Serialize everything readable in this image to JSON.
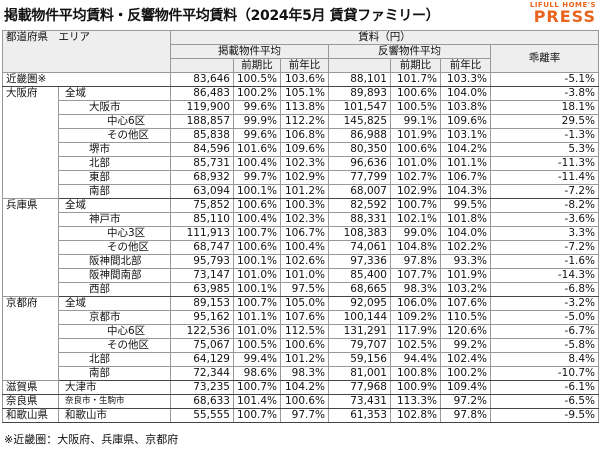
{
  "header": {
    "title": "掲載物件平均賃料・反響物件平均賃料（2024年5月 賃貸ファミリー）",
    "logo_top": "LIFULL HOME'S",
    "logo_bottom": "PRESS"
  },
  "table": {
    "columns": {
      "region": "都道府県　エリア",
      "rent": "賃料（円）",
      "listed": "掲載物件平均",
      "responded": "反響物件平均",
      "gap": "乖離率"
    },
    "sub_headers": [
      "前期比",
      "前年比",
      "前期比",
      "前年比"
    ],
    "groups": [
      {
        "prefecture": "近畿圏※",
        "rows": [
          {
            "values": [
              "83,646",
              "100.5%",
              "103.6%",
              "88,101",
              "101.7%",
              "103.3%",
              "-5.1%"
            ]
          }
        ]
      },
      {
        "prefecture": "大阪府",
        "rows": [
          {
            "area": "全域",
            "values": [
              "86,483",
              "100.2%",
              "105.1%",
              "89,893",
              "100.6%",
              "104.0%",
              "-3.8%"
            ]
          },
          {
            "area": "大阪市",
            "values": [
              "119,900",
              "99.6%",
              "113.8%",
              "101,547",
              "100.5%",
              "103.8%",
              "18.1%"
            ]
          },
          {
            "area": "中心6区",
            "values": [
              "188,857",
              "99.9%",
              "112.2%",
              "145,825",
              "99.1%",
              "109.6%",
              "29.5%"
            ]
          },
          {
            "area": "その他区",
            "values": [
              "85,838",
              "99.6%",
              "106.8%",
              "86,988",
              "101.9%",
              "103.1%",
              "-1.3%"
            ]
          },
          {
            "area": "堺市",
            "values": [
              "84,596",
              "101.6%",
              "109.6%",
              "80,350",
              "100.6%",
              "104.2%",
              "5.3%"
            ]
          },
          {
            "area": "北部",
            "values": [
              "85,731",
              "100.4%",
              "102.3%",
              "96,636",
              "101.0%",
              "101.1%",
              "-11.3%"
            ]
          },
          {
            "area": "東部",
            "values": [
              "68,932",
              "99.7%",
              "102.9%",
              "77,799",
              "102.7%",
              "106.7%",
              "-11.4%"
            ]
          },
          {
            "area": "南部",
            "values": [
              "63,094",
              "100.1%",
              "101.2%",
              "68,007",
              "102.9%",
              "104.3%",
              "-7.2%"
            ]
          }
        ]
      },
      {
        "prefecture": "兵庫県",
        "rows": [
          {
            "area": "全域",
            "values": [
              "75,852",
              "100.6%",
              "100.3%",
              "82,592",
              "100.7%",
              "99.5%",
              "-8.2%"
            ]
          },
          {
            "area": "神戸市",
            "values": [
              "85,110",
              "100.4%",
              "102.3%",
              "88,331",
              "102.1%",
              "101.8%",
              "-3.6%"
            ]
          },
          {
            "area": "中心3区",
            "values": [
              "111,913",
              "100.7%",
              "106.7%",
              "108,383",
              "99.0%",
              "104.0%",
              "3.3%"
            ]
          },
          {
            "area": "その他区",
            "values": [
              "68,747",
              "100.6%",
              "100.4%",
              "74,061",
              "104.8%",
              "102.2%",
              "-7.2%"
            ]
          },
          {
            "area": "阪神間北部",
            "values": [
              "95,793",
              "100.1%",
              "102.6%",
              "97,336",
              "97.8%",
              "93.3%",
              "-1.6%"
            ]
          },
          {
            "area": "阪神間南部",
            "values": [
              "73,147",
              "101.0%",
              "101.0%",
              "85,400",
              "107.7%",
              "101.9%",
              "-14.3%"
            ]
          },
          {
            "area": "西部",
            "values": [
              "63,985",
              "100.1%",
              "97.5%",
              "68,665",
              "98.3%",
              "103.2%",
              "-6.8%"
            ]
          }
        ]
      },
      {
        "prefecture": "京都府",
        "rows": [
          {
            "area": "全域",
            "values": [
              "89,153",
              "100.7%",
              "105.0%",
              "92,095",
              "106.0%",
              "107.6%",
              "-3.2%"
            ]
          },
          {
            "area": "京都市",
            "values": [
              "95,162",
              "101.1%",
              "107.6%",
              "100,144",
              "109.2%",
              "110.5%",
              "-5.0%"
            ]
          },
          {
            "area": "中心6区",
            "values": [
              "122,536",
              "101.0%",
              "112.5%",
              "131,291",
              "117.9%",
              "120.6%",
              "-6.7%"
            ]
          },
          {
            "area": "その他区",
            "values": [
              "75,067",
              "100.5%",
              "100.6%",
              "79,707",
              "102.5%",
              "99.2%",
              "-5.8%"
            ]
          },
          {
            "area": "北部",
            "values": [
              "64,129",
              "99.4%",
              "101.2%",
              "59,156",
              "94.4%",
              "102.4%",
              "8.4%"
            ]
          },
          {
            "area": "南部",
            "values": [
              "72,344",
              "98.6%",
              "98.3%",
              "81,001",
              "100.8%",
              "100.2%",
              "-10.7%"
            ]
          }
        ]
      },
      {
        "prefecture": "滋賀県",
        "rows": [
          {
            "area": "大津市",
            "values": [
              "73,235",
              "100.7%",
              "104.2%",
              "77,968",
              "100.9%",
              "109.4%",
              "-6.1%"
            ]
          }
        ]
      },
      {
        "prefecture": "奈良県",
        "rows": [
          {
            "area": "奈良市・生駒市",
            "values": [
              "68,633",
              "101.4%",
              "100.6%",
              "73,431",
              "113.3%",
              "97.2%",
              "-6.5%"
            ]
          }
        ]
      },
      {
        "prefecture": "和歌山県",
        "rows": [
          {
            "area": "和歌山市",
            "values": [
              "55,555",
              "100.7%",
              "97.7%",
              "61,353",
              "102.8%",
              "97.8%",
              "-9.5%"
            ]
          }
        ]
      }
    ]
  },
  "footnote": "※近畿圏：大阪府、兵庫県、京都府"
}
